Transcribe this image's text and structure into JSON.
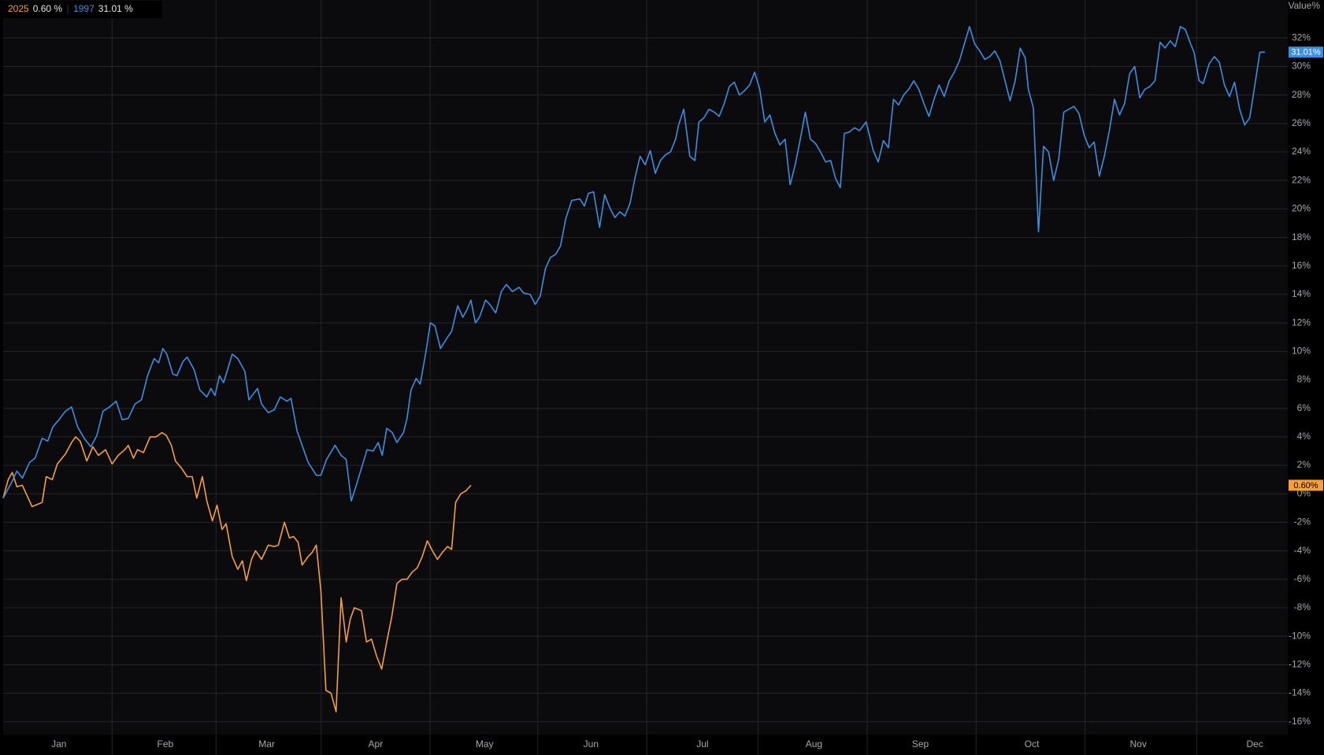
{
  "chart_data": {
    "type": "line",
    "y_axis_label": "Value%",
    "xlim": [
      0,
      253.5
    ],
    "ylim": [
      -16.9,
      34.67
    ],
    "xticks": [
      {
        "value": 11,
        "label": "Jan"
      },
      {
        "value": 32,
        "label": "Feb"
      },
      {
        "value": 52,
        "label": "Mar"
      },
      {
        "value": 73.5,
        "label": "Apr"
      },
      {
        "value": 95,
        "label": "May"
      },
      {
        "value": 116,
        "label": "Jun"
      },
      {
        "value": 138,
        "label": "Jul"
      },
      {
        "value": 160,
        "label": "Aug"
      },
      {
        "value": 181,
        "label": "Sep"
      },
      {
        "value": 203,
        "label": "Oct"
      },
      {
        "value": 224,
        "label": "Nov"
      },
      {
        "value": 247,
        "label": "Dec"
      }
    ],
    "yticks": [
      {
        "value": -16,
        "label": "-16%"
      },
      {
        "value": -14,
        "label": "-14%"
      },
      {
        "value": -12,
        "label": "-12%"
      },
      {
        "value": -10,
        "label": "-10%"
      },
      {
        "value": -8,
        "label": "-8%"
      },
      {
        "value": -6,
        "label": "-6%"
      },
      {
        "value": -4,
        "label": "-4%"
      },
      {
        "value": -2,
        "label": "-2%"
      },
      {
        "value": 0,
        "label": "0%"
      },
      {
        "value": 2,
        "label": "2%"
      },
      {
        "value": 4,
        "label": "4%"
      },
      {
        "value": 6,
        "label": "6%"
      },
      {
        "value": 8,
        "label": "8%"
      },
      {
        "value": 10,
        "label": "10%"
      },
      {
        "value": 12,
        "label": "12%"
      },
      {
        "value": 14,
        "label": "14%"
      },
      {
        "value": 16,
        "label": "16%"
      },
      {
        "value": 18,
        "label": "18%"
      },
      {
        "value": 20,
        "label": "20%"
      },
      {
        "value": 22,
        "label": "22%"
      },
      {
        "value": 24,
        "label": "24%"
      },
      {
        "value": 26,
        "label": "26%"
      },
      {
        "value": 28,
        "label": "28%"
      },
      {
        "value": 30,
        "label": "30%"
      },
      {
        "value": 32,
        "label": "32%"
      }
    ],
    "grid": true,
    "series": [
      {
        "name": "2025",
        "color": "#f7a035",
        "legend_value": "0.60 %",
        "last_label": "0.60%",
        "x": [
          0,
          1,
          1.8,
          2.7,
          3.8,
          5.7,
          7.7,
          8.5,
          9.7,
          10.7,
          12.3,
          13.5,
          14.3,
          15.2,
          16.5,
          17.7,
          18.8,
          20.2,
          21.5,
          22.7,
          24,
          24.7,
          25.7,
          26.5,
          27.7,
          29,
          30.2,
          31.3,
          32.2,
          33.2,
          34,
          35.2,
          36.3,
          37.3,
          38.2,
          39.3,
          40.2,
          41.3,
          42.2,
          43.2,
          44,
          45.2,
          46.3,
          47.2,
          48,
          49,
          49.8,
          51,
          52.3,
          53.5,
          54.3,
          55.5,
          56.5,
          57.3,
          58.2,
          59,
          60.2,
          61,
          61.8,
          62.7,
          63.7,
          64.7,
          65.7,
          66.7,
          67.7,
          68.5,
          69.3,
          70.7,
          71.7,
          72.7,
          73.7,
          74.7,
          75.7,
          76.7,
          77.7,
          78.7,
          79.7,
          80.7,
          81.7,
          82.7,
          83.7,
          84.7,
          85.7,
          86.7,
          87.7,
          88.5,
          89.3,
          90.3,
          91.3,
          92.3
        ],
        "values": [
          -0.3,
          1.0,
          1.5,
          0.5,
          0.6,
          -0.9,
          -0.6,
          1.2,
          1.0,
          2.1,
          2.8,
          3.6,
          4.0,
          3.7,
          2.3,
          3.3,
          2.7,
          3.1,
          2.1,
          2.7,
          3.1,
          3.4,
          2.5,
          3.1,
          2.9,
          4.0,
          4.0,
          4.3,
          4.1,
          3.4,
          2.3,
          1.8,
          1.2,
          1.2,
          -0.3,
          1.2,
          -0.5,
          -1.9,
          -0.8,
          -2.5,
          -2.1,
          -4.4,
          -5.3,
          -4.7,
          -6.1,
          -4.6,
          -4.0,
          -4.6,
          -3.6,
          -3.7,
          -3.6,
          -2.0,
          -3.1,
          -3.0,
          -3.4,
          -5.0,
          -4.4,
          -4.1,
          -3.6,
          -6.8,
          -13.8,
          -14.0,
          -15.3,
          -7.3,
          -10.4,
          -8.8,
          -8.0,
          -8.2,
          -10.4,
          -10.2,
          -11.4,
          -12.3,
          -10.4,
          -8.6,
          -6.3,
          -6.0,
          -6.0,
          -5.5,
          -5.2,
          -4.4,
          -3.3,
          -4.0,
          -4.6,
          -4.1,
          -3.7,
          -3.9,
          -0.6,
          0.0,
          0.2,
          0.6
        ]
      },
      {
        "name": "1997",
        "color": "#3d8ee0",
        "legend_value": "31.01 %",
        "last_label": "31.01%",
        "x": [
          0,
          1.8,
          2.7,
          3.8,
          5.2,
          6.3,
          7.7,
          8.8,
          9.8,
          11,
          12.3,
          13.5,
          14.7,
          16,
          17.3,
          18.5,
          19.7,
          21,
          22.3,
          23.5,
          24.7,
          26,
          27.3,
          28.5,
          29.8,
          30.7,
          31.5,
          32.3,
          33.5,
          34.3,
          35.5,
          36.3,
          37.7,
          38.8,
          40.2,
          41,
          41.8,
          42.7,
          43.5,
          45.2,
          46.3,
          47.7,
          48.5,
          50.2,
          51,
          52.3,
          53.5,
          54.7,
          56,
          56.8,
          58,
          60.2,
          61.8,
          62.7,
          63.8,
          65.5,
          66.7,
          67.7,
          68.7,
          69.7,
          70.7,
          71.8,
          73,
          74,
          74.8,
          75.7,
          76.8,
          77.7,
          79,
          79.7,
          80.5,
          81.5,
          82.3,
          83.5,
          84.3,
          85.2,
          86.3,
          87.7,
          88.5,
          89.7,
          90.7,
          91.5,
          92.3,
          93.2,
          94,
          95.2,
          96,
          97.2,
          98.3,
          99.3,
          100.5,
          101.8,
          102.7,
          104,
          105,
          106,
          107,
          108,
          109,
          110,
          111,
          112.2,
          113.8,
          114.7,
          115.5,
          116.5,
          117.7,
          118.7,
          119.7,
          120.7,
          121.7,
          122.7,
          123.7,
          124.7,
          125.7,
          126.7,
          127.7,
          128.7,
          129.7,
          130.7,
          131.7,
          132.7,
          133.3,
          134.3,
          135.5,
          136.5,
          137.3,
          138.3,
          139.3,
          140.3,
          141.3,
          142.3,
          143.3,
          144.3,
          145.3,
          146.3,
          147.3,
          148.3,
          149.3,
          150.3,
          151.3,
          152.3,
          153.3,
          154.3,
          155.3,
          156.3,
          157.3,
          158.3,
          159.3,
          160.3,
          161.3,
          162.3,
          163.3,
          164.3,
          165.2,
          166,
          167,
          168,
          169,
          170.3,
          171.7,
          172.7,
          173.7,
          174.7,
          175.7,
          176.7,
          177.7,
          178.7,
          179.7,
          180.7,
          181.7,
          182.7,
          183.7,
          184.7,
          185.7,
          186.7,
          187.7,
          188.7,
          189.7,
          190.7,
          191.7,
          192.7,
          193.7,
          194.7,
          195.7,
          196.7,
          197.7,
          198.7,
          199.7,
          200.7,
          201.7,
          202.3,
          203.3,
          204.3,
          205.3,
          206.3,
          207.3,
          208.3,
          209.3,
          210.3,
          211.3,
          212.3,
          213.3,
          214.3,
          215.3,
          216.3,
          217.3,
          218.3,
          219.3,
          220.3,
          221.3,
          222.3,
          223.3,
          224.3,
          225.3,
          226.3,
          227.3,
          228.3,
          229.3,
          230.3,
          231.3,
          232.3,
          233.3,
          234.3,
          235,
          236,
          236.8,
          238,
          239,
          240,
          241,
          242,
          243,
          244,
          245,
          246,
          247,
          248,
          249
        ],
        "values": [
          -0.3,
          0.9,
          1.6,
          1.1,
          2.2,
          2.5,
          3.9,
          3.7,
          4.7,
          5.2,
          5.8,
          6.1,
          4.7,
          3.9,
          3.3,
          4.1,
          5.8,
          6.1,
          6.5,
          5.2,
          5.3,
          6.3,
          6.6,
          8.3,
          9.5,
          9.2,
          10.2,
          9.8,
          8.4,
          8.3,
          9.3,
          9.6,
          8.7,
          7.3,
          6.8,
          7.4,
          6.9,
          8.3,
          7.8,
          9.8,
          9.5,
          8.6,
          6.6,
          7.4,
          6.3,
          5.7,
          5.9,
          6.8,
          6.5,
          6.7,
          4.4,
          2.2,
          1.3,
          1.3,
          2.4,
          3.4,
          2.7,
          2.4,
          -0.5,
          0.6,
          1.8,
          3.1,
          3.0,
          3.6,
          2.7,
          4.6,
          4.3,
          3.6,
          4.3,
          5.3,
          7.3,
          8.1,
          7.7,
          10.1,
          12.0,
          11.8,
          10.2,
          11.0,
          11.4,
          13.2,
          12.4,
          12.9,
          13.6,
          12.0,
          12.4,
          13.6,
          13.3,
          12.7,
          14.2,
          14.7,
          14.2,
          14.5,
          14.1,
          14.0,
          13.3,
          13.9,
          15.8,
          16.6,
          16.8,
          17.4,
          19.3,
          20.6,
          20.7,
          20.2,
          21.1,
          21.2,
          18.7,
          21.0,
          20.1,
          19.4,
          19.8,
          19.5,
          20.4,
          22.2,
          23.7,
          23.1,
          24.1,
          22.5,
          23.4,
          23.8,
          24.0,
          24.9,
          25.9,
          27.0,
          23.7,
          23.4,
          26.1,
          26.4,
          27.0,
          26.8,
          26.5,
          27.4,
          28.6,
          28.9,
          28.0,
          28.3,
          28.7,
          29.6,
          28.4,
          26.1,
          26.6,
          25.3,
          24.5,
          24.9,
          21.7,
          23.1,
          24.9,
          26.8,
          24.9,
          24.6,
          24.0,
          23.3,
          23.4,
          22.1,
          21.5,
          25.3,
          25.4,
          25.7,
          25.5,
          26.1,
          24.1,
          23.3,
          24.8,
          24.3,
          27.7,
          27.3,
          28.0,
          28.4,
          29.0,
          28.4,
          27.4,
          26.5,
          27.7,
          28.7,
          27.9,
          29.0,
          29.6,
          30.4,
          31.6,
          32.8,
          31.6,
          31.1,
          30.5,
          30.7,
          31.1,
          30.4,
          29.0,
          27.6,
          29.0,
          31.3,
          30.6,
          28.4,
          27.1,
          18.4,
          24.4,
          24.0,
          22.0,
          23.5,
          26.8,
          27.0,
          27.2,
          26.7,
          25.2,
          24.3,
          24.7,
          22.3,
          23.7,
          25.5,
          27.7,
          26.6,
          27.4,
          29.5,
          30.0,
          27.8,
          28.4,
          28.6,
          29.0,
          31.7,
          31.3,
          31.8,
          31.4,
          32.8,
          32.6,
          31.6,
          31.0,
          29.0,
          28.8,
          30.2,
          30.7,
          30.3,
          28.7,
          27.9,
          28.9,
          27.0,
          25.9,
          26.4,
          28.7,
          31.0,
          31.01
        ]
      }
    ]
  }
}
